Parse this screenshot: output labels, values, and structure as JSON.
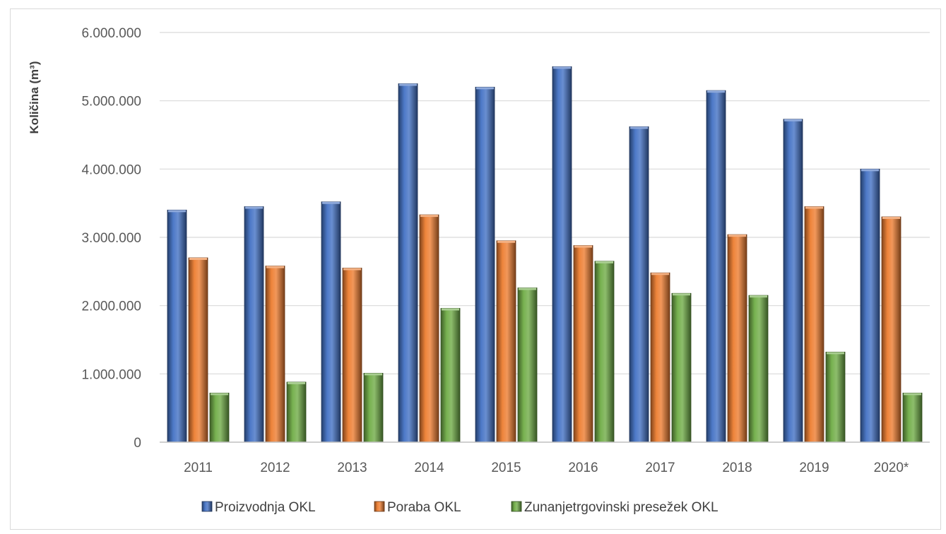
{
  "chart_data": {
    "type": "bar",
    "title": "",
    "xlabel": "",
    "ylabel": "Količina (m³)",
    "ylim": [
      0,
      6000000
    ],
    "yticks": [
      0,
      1000000,
      2000000,
      3000000,
      4000000,
      5000000,
      6000000
    ],
    "ytick_labels": [
      "0",
      "1.000.000",
      "2.000.000",
      "3.000.000",
      "4.000.000",
      "5.000.000",
      "6.000.000"
    ],
    "categories": [
      "2011",
      "2012",
      "2013",
      "2014",
      "2015",
      "2016",
      "2017",
      "2018",
      "2019",
      "2020*"
    ],
    "grid": true,
    "legend_position": "bottom",
    "series": [
      {
        "name": "Proizvodnja OKL",
        "color": "#4472c4",
        "values": [
          3400000,
          3450000,
          3520000,
          5250000,
          5200000,
          5500000,
          4620000,
          5150000,
          4730000,
          4000000
        ]
      },
      {
        "name": "Poraba OKL",
        "color": "#ed7d31",
        "values": [
          2700000,
          2580000,
          2550000,
          3330000,
          2950000,
          2880000,
          2480000,
          3040000,
          3450000,
          3300000
        ]
      },
      {
        "name": "Zunanjetrgovinski presežek OKL",
        "color": "#70ad47",
        "values": [
          720000,
          880000,
          1010000,
          1960000,
          2260000,
          2650000,
          2180000,
          2150000,
          1320000,
          720000
        ]
      }
    ]
  }
}
